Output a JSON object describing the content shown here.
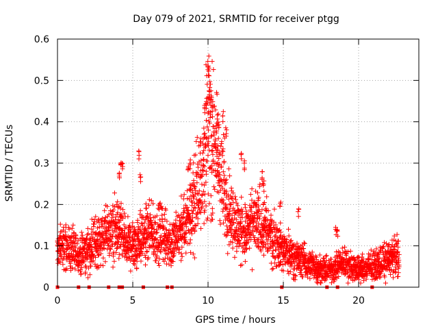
{
  "chart_data": {
    "type": "scatter",
    "title": "Day 079 of 2021, SRMTID for receiver ptgg",
    "xlabel": "GPS time / hours",
    "ylabel": "SRMTID / TECUs",
    "xlim": [
      0,
      24
    ],
    "ylim": [
      0,
      0.6
    ],
    "xticks": [
      0,
      5,
      10,
      15,
      20
    ],
    "xtick_labels": [
      "0",
      "5",
      "10",
      "15",
      "20"
    ],
    "yticks": [
      0,
      0.1,
      0.2,
      0.3,
      0.4,
      0.5,
      0.6
    ],
    "ytick_labels": [
      "0",
      "0.1",
      "0.2",
      "0.3",
      "0.4",
      "0.5",
      "0.6"
    ],
    "grid": true,
    "marker": "+",
    "color": "#ff0000",
    "series": [
      {
        "name": "SRMTID",
        "trend_x": [
          0,
          0.5,
          1,
          1.5,
          2,
          2.5,
          3,
          3.5,
          4,
          4.5,
          5,
          5.5,
          6,
          6.5,
          7,
          7.5,
          8,
          8.5,
          9,
          9.5,
          10,
          10.5,
          11,
          11.5,
          12,
          12.5,
          13,
          13.5,
          14,
          14.5,
          15,
          15.5,
          16,
          16.5,
          17,
          17.5,
          18,
          18.5,
          19,
          19.5,
          20,
          20.5,
          21,
          21.5,
          22,
          22.7
        ],
        "trend_y": [
          0.09,
          0.1,
          0.085,
          0.075,
          0.085,
          0.11,
          0.12,
          0.13,
          0.14,
          0.11,
          0.1,
          0.12,
          0.13,
          0.12,
          0.13,
          0.1,
          0.12,
          0.15,
          0.2,
          0.26,
          0.37,
          0.33,
          0.24,
          0.18,
          0.14,
          0.13,
          0.15,
          0.16,
          0.13,
          0.11,
          0.09,
          0.08,
          0.07,
          0.06,
          0.05,
          0.045,
          0.04,
          0.05,
          0.06,
          0.05,
          0.045,
          0.045,
          0.05,
          0.06,
          0.07,
          0.075
        ],
        "peaks": [
          [
            4.2,
            0.31
          ],
          [
            4.3,
            0.3
          ],
          [
            4.1,
            0.29
          ],
          [
            5.4,
            0.33
          ],
          [
            5.5,
            0.28
          ],
          [
            8.7,
            0.3
          ],
          [
            8.8,
            0.31
          ],
          [
            9.5,
            0.36
          ],
          [
            9.8,
            0.44
          ],
          [
            9.9,
            0.46
          ],
          [
            10.0,
            0.55
          ],
          [
            10.05,
            0.54
          ],
          [
            10.1,
            0.5
          ],
          [
            10.2,
            0.47
          ],
          [
            10.3,
            0.45
          ],
          [
            10.6,
            0.42
          ],
          [
            10.7,
            0.4
          ],
          [
            11.0,
            0.43
          ],
          [
            11.2,
            0.39
          ],
          [
            12.2,
            0.34
          ],
          [
            12.4,
            0.31
          ],
          [
            13.6,
            0.28
          ],
          [
            13.7,
            0.26
          ],
          [
            14.8,
            0.22
          ],
          [
            16.0,
            0.19
          ],
          [
            18.5,
            0.155
          ],
          [
            18.6,
            0.145
          ],
          [
            22.2,
            0.1
          ]
        ],
        "baseline_x": [
          0,
          1.4,
          2.1,
          3.4,
          4.1,
          4.3,
          5.7,
          7.3,
          7.6,
          14.9,
          17.9,
          18.6,
          20.9
        ]
      }
    ]
  }
}
